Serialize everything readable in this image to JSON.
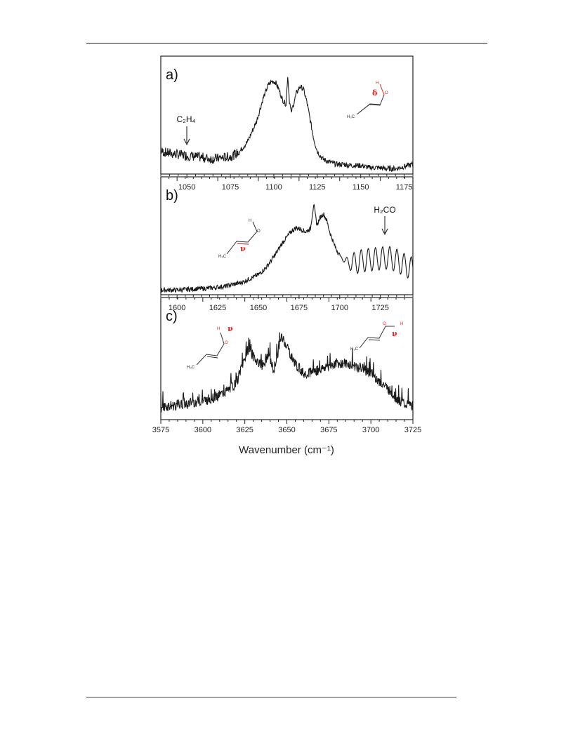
{
  "figure": {
    "xlabel": "Wavenumber (cm⁻¹)"
  },
  "chart_data": [
    {
      "type": "line",
      "panel_label": "a)",
      "xlim": [
        1035,
        1180
      ],
      "ylim": [
        0,
        1
      ],
      "xticks": [
        1050,
        1075,
        1100,
        1125,
        1150,
        1175
      ],
      "grid": false,
      "annotations": [
        {
          "text": "C₂H₄",
          "x": 1046,
          "arrow": true
        },
        {
          "text": "δ",
          "molecule": "trans OH bend",
          "color": "#e8261f"
        }
      ],
      "series": [
        {
          "values": [
            [
              1035,
              0.17
            ],
            [
              1040,
              0.15
            ],
            [
              1045,
              0.14
            ],
            [
              1050,
              0.13
            ],
            [
              1055,
              0.12
            ],
            [
              1060,
              0.11
            ],
            [
              1065,
              0.1
            ],
            [
              1070,
              0.11
            ],
            [
              1075,
              0.12
            ],
            [
              1080,
              0.16
            ],
            [
              1085,
              0.26
            ],
            [
              1090,
              0.44
            ],
            [
              1094,
              0.66
            ],
            [
              1097,
              0.78
            ],
            [
              1099,
              0.81
            ],
            [
              1101,
              0.8
            ],
            [
              1103,
              0.73
            ],
            [
              1105,
              0.64
            ],
            [
              1107,
              0.6
            ],
            [
              1108,
              0.86
            ],
            [
              1109,
              0.63
            ],
            [
              1110,
              0.52
            ],
            [
              1111,
              0.58
            ],
            [
              1113,
              0.7
            ],
            [
              1115,
              0.76
            ],
            [
              1117,
              0.74
            ],
            [
              1119,
              0.62
            ],
            [
              1121,
              0.45
            ],
            [
              1123,
              0.28
            ],
            [
              1125,
              0.17
            ],
            [
              1128,
              0.1
            ],
            [
              1132,
              0.07
            ],
            [
              1136,
              0.05
            ],
            [
              1140,
              0.05
            ],
            [
              1145,
              0.04
            ],
            [
              1150,
              0.04
            ],
            [
              1155,
              0.02
            ],
            [
              1160,
              0.02
            ],
            [
              1165,
              0.01
            ],
            [
              1170,
              0.01
            ],
            [
              1175,
              0.03
            ],
            [
              1180,
              0.05
            ]
          ]
        }
      ]
    },
    {
      "type": "line",
      "panel_label": "b)",
      "xlim": [
        1590,
        1745
      ],
      "ylim": [
        0,
        1
      ],
      "xticks": [
        1600,
        1625,
        1650,
        1675,
        1700,
        1725
      ],
      "grid": false,
      "annotations": [
        {
          "text": "H₂CO",
          "x": 1726,
          "arrow": true
        },
        {
          "text": "ν",
          "molecule": "C=C stretch",
          "color": "#e8261f"
        }
      ],
      "series": [
        {
          "values": [
            [
              1590,
              0.02
            ],
            [
              1600,
              0.02
            ],
            [
              1610,
              0.03
            ],
            [
              1620,
              0.04
            ],
            [
              1630,
              0.06
            ],
            [
              1640,
              0.1
            ],
            [
              1650,
              0.18
            ],
            [
              1655,
              0.26
            ],
            [
              1660,
              0.38
            ],
            [
              1665,
              0.52
            ],
            [
              1670,
              0.63
            ],
            [
              1673,
              0.67
            ],
            [
              1676,
              0.66
            ],
            [
              1679,
              0.63
            ],
            [
              1682,
              0.66
            ],
            [
              1684,
              0.92
            ],
            [
              1686,
              0.7
            ],
            [
              1688,
              0.78
            ],
            [
              1690,
              0.82
            ],
            [
              1692,
              0.75
            ],
            [
              1694,
              0.62
            ],
            [
              1697,
              0.48
            ],
            [
              1700,
              0.38
            ],
            [
              1705,
              0.3
            ],
            [
              1710,
              0.31
            ],
            [
              1715,
              0.33
            ],
            [
              1720,
              0.34
            ],
            [
              1725,
              0.35
            ],
            [
              1730,
              0.36
            ],
            [
              1735,
              0.33
            ],
            [
              1740,
              0.28
            ],
            [
              1745,
              0.24
            ]
          ]
        }
      ]
    },
    {
      "type": "line",
      "panel_label": "c)",
      "xlim": [
        3575,
        3725
      ],
      "ylim": [
        0,
        1
      ],
      "xticks": [
        3575,
        3600,
        3625,
        3650,
        3675,
        3700,
        3725
      ],
      "xlabel": "Wavenumber (cm⁻¹)",
      "grid": false,
      "annotations": [
        {
          "text": "ν",
          "molecule": "cis OH stretch",
          "color": "#e8261f"
        },
        {
          "text": "ν",
          "molecule": "trans OH stretch",
          "color": "#e8261f"
        }
      ],
      "series": [
        {
          "values": [
            [
              3575,
              0.08
            ],
            [
              3580,
              0.1
            ],
            [
              3585,
              0.11
            ],
            [
              3590,
              0.12
            ],
            [
              3595,
              0.14
            ],
            [
              3600,
              0.15
            ],
            [
              3605,
              0.18
            ],
            [
              3610,
              0.21
            ],
            [
              3615,
              0.26
            ],
            [
              3620,
              0.34
            ],
            [
              3624,
              0.55
            ],
            [
              3627,
              0.7
            ],
            [
              3630,
              0.62
            ],
            [
              3633,
              0.56
            ],
            [
              3636,
              0.5
            ],
            [
              3639,
              0.66
            ],
            [
              3642,
              0.46
            ],
            [
              3645,
              0.68
            ],
            [
              3647,
              0.82
            ],
            [
              3650,
              0.73
            ],
            [
              3653,
              0.6
            ],
            [
              3656,
              0.52
            ],
            [
              3660,
              0.44
            ],
            [
              3665,
              0.46
            ],
            [
              3670,
              0.48
            ],
            [
              3675,
              0.52
            ],
            [
              3680,
              0.55
            ],
            [
              3685,
              0.54
            ],
            [
              3690,
              0.52
            ],
            [
              3695,
              0.49
            ],
            [
              3700,
              0.44
            ],
            [
              3705,
              0.36
            ],
            [
              3710,
              0.28
            ],
            [
              3715,
              0.18
            ],
            [
              3720,
              0.12
            ],
            [
              3725,
              0.1
            ]
          ]
        }
      ]
    }
  ]
}
